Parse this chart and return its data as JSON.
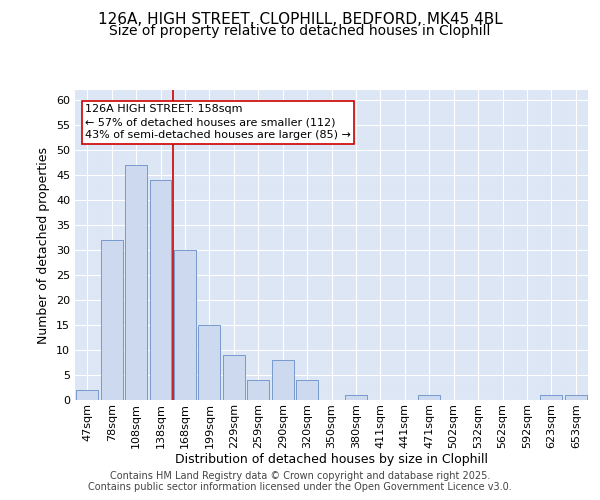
{
  "title_line1": "126A, HIGH STREET, CLOPHILL, BEDFORD, MK45 4BL",
  "title_line2": "Size of property relative to detached houses in Clophill",
  "xlabel": "Distribution of detached houses by size in Clophill",
  "ylabel": "Number of detached properties",
  "categories": [
    "47sqm",
    "78sqm",
    "108sqm",
    "138sqm",
    "168sqm",
    "199sqm",
    "229sqm",
    "259sqm",
    "290sqm",
    "320sqm",
    "350sqm",
    "380sqm",
    "411sqm",
    "441sqm",
    "471sqm",
    "502sqm",
    "532sqm",
    "562sqm",
    "592sqm",
    "623sqm",
    "653sqm"
  ],
  "values": [
    2,
    32,
    47,
    44,
    30,
    15,
    9,
    4,
    8,
    4,
    0,
    1,
    0,
    0,
    1,
    0,
    0,
    0,
    0,
    1,
    1
  ],
  "bar_color": "#ccd9ee",
  "bar_edge_color": "#7799cc",
  "plot_bg_color": "#dce6f5",
  "fig_bg_color": "#ffffff",
  "grid_color": "#ffffff",
  "annotation_text": "126A HIGH STREET: 158sqm\n← 57% of detached houses are smaller (112)\n43% of semi-detached houses are larger (85) →",
  "annotation_box_facecolor": "#ffffff",
  "annotation_box_edgecolor": "#cc0000",
  "redline_x": 3.5,
  "ylim": [
    0,
    62
  ],
  "yticks": [
    0,
    5,
    10,
    15,
    20,
    25,
    30,
    35,
    40,
    45,
    50,
    55,
    60
  ],
  "footnote": "Contains HM Land Registry data © Crown copyright and database right 2025.\nContains public sector information licensed under the Open Government Licence v3.0.",
  "title_fontsize": 11,
  "subtitle_fontsize": 10,
  "axis_label_fontsize": 9,
  "tick_fontsize": 8,
  "annotation_fontsize": 8,
  "footnote_fontsize": 7
}
